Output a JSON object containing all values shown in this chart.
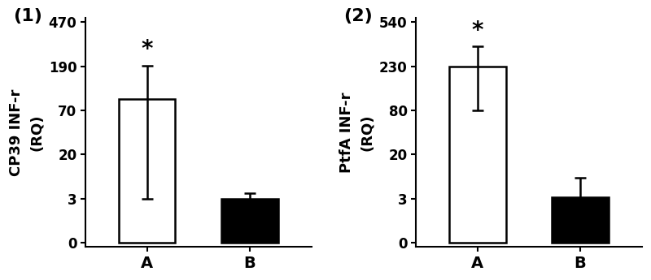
{
  "plots": [
    {
      "panel_label": "(1)",
      "ylabel_line1": "CP39 INF-r",
      "ylabel_line2": "(RQ)",
      "categories": [
        "A",
        "B"
      ],
      "bar_values": [
        100,
        3.0
      ],
      "bar_errors_low": [
        97,
        1.5
      ],
      "bar_errors_high": [
        95,
        2.0
      ],
      "bar_colors": [
        "white",
        "black"
      ],
      "bar_edgecolors": [
        "black",
        "black"
      ],
      "yticks_real": [
        0,
        3,
        20,
        70,
        190,
        470
      ],
      "ytick_labels": [
        "0",
        "3",
        "20",
        "70",
        "190",
        "470"
      ]
    },
    {
      "panel_label": "(2)",
      "ylabel_line1": "PtfA INF-r",
      "ylabel_line2": "(RQ)",
      "categories": [
        "A",
        "B"
      ],
      "bar_values": [
        230,
        3.5
      ],
      "bar_errors_low": [
        150,
        2.0
      ],
      "bar_errors_high": [
        140,
        7.5
      ],
      "bar_colors": [
        "white",
        "black"
      ],
      "bar_edgecolors": [
        "black",
        "black"
      ],
      "yticks_real": [
        0,
        3,
        20,
        80,
        230,
        540
      ],
      "ytick_labels": [
        "0",
        "3",
        "20",
        "80",
        "230",
        "540"
      ]
    }
  ],
  "background_color": "#ffffff",
  "figure_width": 8.0,
  "figure_height": 3.45,
  "bar_width": 0.55,
  "x_positions": [
    0.7,
    1.7
  ],
  "xlim": [
    0.1,
    2.3
  ],
  "label_fontsize": 13,
  "tick_label_fontsize": 12,
  "panel_label_fontsize": 16,
  "star_fontsize": 20,
  "xtick_fontsize": 14
}
